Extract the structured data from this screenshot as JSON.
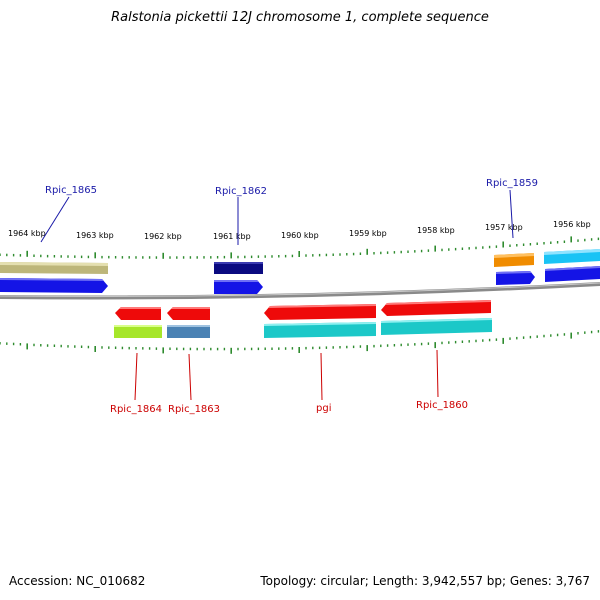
{
  "title": "Ralstonia pickettii 12J chromosome 1, complete sequence",
  "footer": {
    "accession": "Accession: NC_010682",
    "topology": "Topology: circular; Length: 3,942,557 bp; Genes: 3,767"
  },
  "scale_labels": [
    "1964 kbp",
    "1963 kbp",
    "1962 kbp",
    "1961 kbp",
    "1960 kbp",
    "1959 kbp",
    "1958 kbp",
    "1957 kbp",
    "1956 kbp"
  ],
  "gene_labels_top": [
    "Rpic_1865",
    "Rpic_1862",
    "Rpic_1859"
  ],
  "gene_labels_bottom": [
    "Rpic_1864",
    "Rpic_1863",
    "pgi",
    "Rpic_1860"
  ],
  "colors": {
    "tick": "#2e8b2e",
    "backbone": "#8a8a8a",
    "label_top": "#1a1aa8",
    "label_bottom": "#cc0000",
    "tan": "#bdb67a",
    "navy": "#0a0a80",
    "blue": "#1414e6",
    "orange": "#f08c00",
    "lightblue": "#19c3f5",
    "red": "#ee0a0a",
    "lime": "#a6e62a",
    "steel": "#4a82b4",
    "cyan": "#1cc8c8"
  }
}
